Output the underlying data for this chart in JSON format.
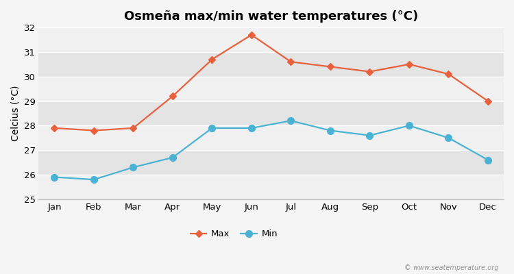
{
  "title": "Osmeña max/min water temperatures (°C)",
  "ylabel": "Celcius (°C)",
  "months": [
    "Jan",
    "Feb",
    "Mar",
    "Apr",
    "May",
    "Jun",
    "Jul",
    "Aug",
    "Sep",
    "Oct",
    "Nov",
    "Dec"
  ],
  "max_temps": [
    27.9,
    27.8,
    27.9,
    29.2,
    30.7,
    31.7,
    30.6,
    30.4,
    30.2,
    30.5,
    30.1,
    29.0
  ],
  "min_temps": [
    25.9,
    25.8,
    26.3,
    26.7,
    27.9,
    27.9,
    28.2,
    27.8,
    27.6,
    28.0,
    27.5,
    26.6
  ],
  "max_color": "#e8603c",
  "min_color": "#4ab3d4",
  "fig_bg_color": "#f5f5f5",
  "band_light": "#f0f0f0",
  "band_dark": "#e4e4e4",
  "ylim": [
    25,
    32
  ],
  "yticks": [
    25,
    26,
    27,
    28,
    29,
    30,
    31,
    32
  ],
  "watermark": "© www.seatemperature.org",
  "legend_labels": [
    "Max",
    "Min"
  ],
  "title_fontsize": 13,
  "axis_fontsize": 10,
  "tick_fontsize": 9.5
}
